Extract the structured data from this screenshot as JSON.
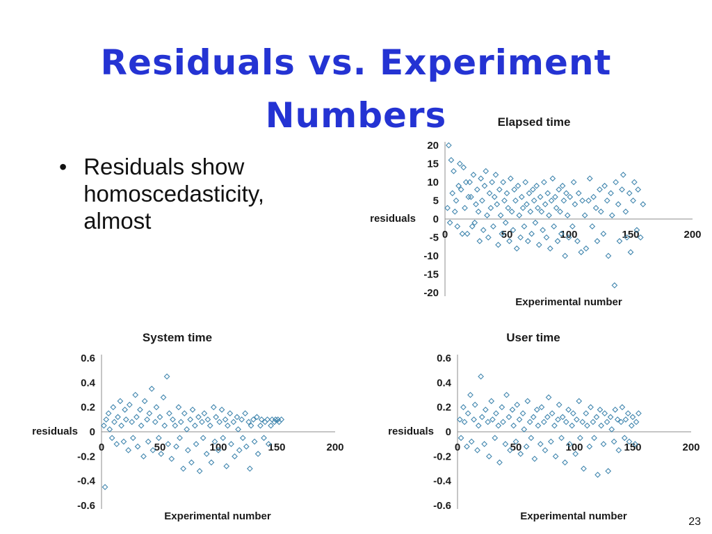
{
  "slide": {
    "title_line1": "Residuals vs. Experiment",
    "title_line2": "Numbers",
    "bullet_char": "•",
    "bullet_lines": [
      "Residuals show",
      "homoscedasticity,",
      "almost"
    ],
    "page_number": "23"
  },
  "colors": {
    "title_blue": "#2433d3",
    "marker": "#4186ae",
    "axis": "#8c8c8c"
  },
  "chart_data": [
    {
      "type": "scatter",
      "title": "Elapsed time",
      "xlabel": "Experimental number",
      "ylabel": "residuals",
      "xlim": [
        0,
        200
      ],
      "ylim": [
        -20,
        20
      ],
      "xticks": [
        0,
        50,
        100,
        150,
        200
      ],
      "yticks": [
        20,
        15,
        10,
        5,
        0,
        -5,
        -10,
        -15,
        -20
      ],
      "legend": "none",
      "grid": "zero-line-only",
      "marker": "open-diamond",
      "marker_color": "#4186ae",
      "points": [
        [
          2,
          3
        ],
        [
          3,
          20
        ],
        [
          4,
          -1
        ],
        [
          5,
          16
        ],
        [
          6,
          7
        ],
        [
          7,
          13
        ],
        [
          8,
          2
        ],
        [
          9,
          5
        ],
        [
          10,
          -2
        ],
        [
          11,
          9
        ],
        [
          12,
          15
        ],
        [
          13,
          8
        ],
        [
          14,
          -4
        ],
        [
          15,
          14
        ],
        [
          16,
          3
        ],
        [
          17,
          10
        ],
        [
          18,
          -4
        ],
        [
          19,
          6
        ],
        [
          20,
          10
        ],
        [
          21,
          6
        ],
        [
          22,
          -2
        ],
        [
          23,
          12
        ],
        [
          24,
          -1
        ],
        [
          25,
          4
        ],
        [
          26,
          8
        ],
        [
          27,
          2
        ],
        [
          28,
          -6
        ],
        [
          29,
          11
        ],
        [
          30,
          5
        ],
        [
          31,
          -3
        ],
        [
          32,
          9
        ],
        [
          33,
          13
        ],
        [
          34,
          1
        ],
        [
          35,
          -5
        ],
        [
          36,
          7
        ],
        [
          37,
          3
        ],
        [
          38,
          10
        ],
        [
          39,
          -2
        ],
        [
          40,
          6
        ],
        [
          41,
          12
        ],
        [
          42,
          4
        ],
        [
          43,
          -7
        ],
        [
          44,
          8
        ],
        [
          45,
          1
        ],
        [
          46,
          -4
        ],
        [
          47,
          10
        ],
        [
          48,
          5
        ],
        [
          49,
          -1
        ],
        [
          50,
          7
        ],
        [
          51,
          3
        ],
        [
          52,
          -6
        ],
        [
          53,
          11
        ],
        [
          54,
          2
        ],
        [
          55,
          -3
        ],
        [
          56,
          8
        ],
        [
          57,
          5
        ],
        [
          58,
          -8
        ],
        [
          59,
          9
        ],
        [
          60,
          1
        ],
        [
          61,
          -5
        ],
        [
          62,
          6
        ],
        [
          63,
          3
        ],
        [
          64,
          -2
        ],
        [
          65,
          10
        ],
        [
          66,
          4
        ],
        [
          67,
          -6
        ],
        [
          68,
          7
        ],
        [
          69,
          2
        ],
        [
          70,
          -4
        ],
        [
          71,
          8
        ],
        [
          72,
          5
        ],
        [
          73,
          -1
        ],
        [
          74,
          9
        ],
        [
          75,
          3
        ],
        [
          76,
          -7
        ],
        [
          77,
          6
        ],
        [
          78,
          2
        ],
        [
          79,
          -3
        ],
        [
          80,
          10
        ],
        [
          81,
          4
        ],
        [
          82,
          -5
        ],
        [
          83,
          7
        ],
        [
          84,
          1
        ],
        [
          85,
          -8
        ],
        [
          86,
          5
        ],
        [
          87,
          11
        ],
        [
          88,
          -2
        ],
        [
          89,
          6
        ],
        [
          90,
          3
        ],
        [
          91,
          -6
        ],
        [
          92,
          8
        ],
        [
          93,
          2
        ],
        [
          94,
          -4
        ],
        [
          95,
          9
        ],
        [
          96,
          5
        ],
        [
          97,
          -10
        ],
        [
          98,
          7
        ],
        [
          99,
          1
        ],
        [
          100,
          -5
        ],
        [
          101,
          6
        ],
        [
          103,
          -2
        ],
        [
          104,
          10
        ],
        [
          105,
          4
        ],
        [
          107,
          -6
        ],
        [
          108,
          7
        ],
        [
          110,
          -9
        ],
        [
          111,
          5
        ],
        [
          113,
          1
        ],
        [
          114,
          -8
        ],
        [
          116,
          5
        ],
        [
          117,
          11
        ],
        [
          119,
          -2
        ],
        [
          120,
          6
        ],
        [
          122,
          3
        ],
        [
          123,
          -6
        ],
        [
          125,
          8
        ],
        [
          126,
          2
        ],
        [
          128,
          -4
        ],
        [
          129,
          9
        ],
        [
          131,
          5
        ],
        [
          132,
          -10
        ],
        [
          134,
          7
        ],
        [
          135,
          1
        ],
        [
          137,
          -18
        ],
        [
          138,
          10
        ],
        [
          140,
          4
        ],
        [
          141,
          -6
        ],
        [
          143,
          8
        ],
        [
          144,
          12
        ],
        [
          146,
          2
        ],
        [
          147,
          -5
        ],
        [
          149,
          7
        ],
        [
          150,
          -9
        ],
        [
          152,
          5
        ],
        [
          153,
          10
        ],
        [
          155,
          -3
        ],
        [
          156,
          8
        ],
        [
          158,
          -5
        ],
        [
          160,
          4
        ]
      ]
    },
    {
      "type": "scatter",
      "title": "System time",
      "xlabel": "Experimental number",
      "ylabel": "residuals",
      "xlim": [
        0,
        200
      ],
      "ylim": [
        -0.6,
        0.6
      ],
      "xticks": [
        0,
        50,
        100,
        150,
        200
      ],
      "yticks": [
        0.6,
        0.4,
        0.2,
        0,
        -0.2,
        -0.4,
        -0.6
      ],
      "legend": "none",
      "grid": "zero-line-only",
      "marker": "open-diamond",
      "marker_color": "#4186ae",
      "points": [
        [
          2,
          0.05
        ],
        [
          3,
          -0.45
        ],
        [
          4,
          0.1
        ],
        [
          6,
          0.15
        ],
        [
          7,
          0.02
        ],
        [
          9,
          -0.05
        ],
        [
          10,
          0.2
        ],
        [
          11,
          0.08
        ],
        [
          13,
          -0.1
        ],
        [
          14,
          0.12
        ],
        [
          16,
          0.25
        ],
        [
          17,
          0.05
        ],
        [
          19,
          -0.08
        ],
        [
          20,
          0.18
        ],
        [
          21,
          0.1
        ],
        [
          23,
          -0.15
        ],
        [
          24,
          0.22
        ],
        [
          26,
          0.08
        ],
        [
          27,
          -0.05
        ],
        [
          29,
          0.3
        ],
        [
          30,
          0.12
        ],
        [
          31,
          -0.12
        ],
        [
          33,
          0.18
        ],
        [
          34,
          0.05
        ],
        [
          36,
          -0.2
        ],
        [
          37,
          0.25
        ],
        [
          39,
          0.1
        ],
        [
          40,
          -0.08
        ],
        [
          41,
          0.15
        ],
        [
          43,
          0.35
        ],
        [
          44,
          -0.15
        ],
        [
          46,
          0.08
        ],
        [
          47,
          0.2
        ],
        [
          49,
          -0.05
        ],
        [
          50,
          0.12
        ],
        [
          51,
          -0.18
        ],
        [
          53,
          0.28
        ],
        [
          54,
          0.05
        ],
        [
          56,
          0.45
        ],
        [
          57,
          -0.1
        ],
        [
          58,
          0.15
        ],
        [
          60,
          -0.22
        ],
        [
          61,
          0.1
        ],
        [
          63,
          0.05
        ],
        [
          64,
          -0.12
        ],
        [
          66,
          0.2
        ],
        [
          67,
          -0.05
        ],
        [
          68,
          0.08
        ],
        [
          70,
          -0.3
        ],
        [
          71,
          0.15
        ],
        [
          73,
          0.02
        ],
        [
          74,
          -0.15
        ],
        [
          76,
          0.1
        ],
        [
          77,
          -0.25
        ],
        [
          78,
          0.18
        ],
        [
          80,
          0.05
        ],
        [
          81,
          -0.1
        ],
        [
          83,
          0.12
        ],
        [
          84,
          -0.32
        ],
        [
          86,
          0.08
        ],
        [
          87,
          -0.05
        ],
        [
          88,
          0.15
        ],
        [
          90,
          -0.18
        ],
        [
          91,
          0.1
        ],
        [
          93,
          0.05
        ],
        [
          94,
          -0.25
        ],
        [
          96,
          0.2
        ],
        [
          97,
          -0.08
        ],
        [
          98,
          0.12
        ],
        [
          100,
          -0.15
        ],
        [
          101,
          0.08
        ],
        [
          103,
          0.18
        ],
        [
          104,
          -0.05
        ],
        [
          106,
          0.1
        ],
        [
          107,
          -0.28
        ],
        [
          108,
          0.05
        ],
        [
          110,
          0.15
        ],
        [
          111,
          -0.1
        ],
        [
          113,
          0.08
        ],
        [
          114,
          -0.2
        ],
        [
          116,
          0.12
        ],
        [
          117,
          0.02
        ],
        [
          118,
          -0.15
        ],
        [
          120,
          0.1
        ],
        [
          121,
          -0.05
        ],
        [
          123,
          0.15
        ],
        [
          124,
          -0.12
        ],
        [
          126,
          0.08
        ],
        [
          127,
          -0.3
        ],
        [
          128,
          0.05
        ],
        [
          130,
          0.1
        ],
        [
          131,
          -0.08
        ],
        [
          133,
          0.12
        ],
        [
          134,
          -0.18
        ],
        [
          136,
          0.05
        ],
        [
          137,
          0.1
        ],
        [
          139,
          -0.05
        ],
        [
          140,
          0.08
        ],
        [
          142,
          0.1
        ],
        [
          143,
          -0.1
        ],
        [
          145,
          0.05
        ],
        [
          146,
          0.1
        ],
        [
          148,
          0.08
        ],
        [
          149,
          0.1
        ],
        [
          151,
          0.1
        ],
        [
          152,
          0.08
        ],
        [
          154,
          0.1
        ]
      ]
    },
    {
      "type": "scatter",
      "title": "User time",
      "xlabel": "Experimental number",
      "ylabel": "residuals",
      "xlim": [
        0,
        200
      ],
      "ylim": [
        -0.6,
        0.6
      ],
      "xticks": [
        0,
        50,
        100,
        150,
        200
      ],
      "yticks": [
        0.6,
        0.4,
        0.2,
        0,
        -0.2,
        -0.4,
        -0.6
      ],
      "legend": "none",
      "grid": "zero-line-only",
      "marker": "open-diamond",
      "marker_color": "#4186ae",
      "points": [
        [
          2,
          0.1
        ],
        [
          3,
          -0.05
        ],
        [
          5,
          0.2
        ],
        [
          6,
          0.08
        ],
        [
          8,
          -0.12
        ],
        [
          9,
          0.15
        ],
        [
          11,
          0.3
        ],
        [
          12,
          -0.08
        ],
        [
          14,
          0.1
        ],
        [
          15,
          0.22
        ],
        [
          17,
          -0.15
        ],
        [
          18,
          0.05
        ],
        [
          20,
          0.45
        ],
        [
          21,
          0.12
        ],
        [
          23,
          -0.1
        ],
        [
          24,
          0.18
        ],
        [
          26,
          0.08
        ],
        [
          27,
          -0.2
        ],
        [
          29,
          0.25
        ],
        [
          30,
          0.1
        ],
        [
          32,
          -0.05
        ],
        [
          33,
          0.15
        ],
        [
          35,
          0.05
        ],
        [
          36,
          -0.25
        ],
        [
          38,
          0.2
        ],
        [
          39,
          0.08
        ],
        [
          41,
          -0.1
        ],
        [
          42,
          0.3
        ],
        [
          44,
          0.12
        ],
        [
          45,
          -0.15
        ],
        [
          47,
          0.18
        ],
        [
          48,
          0.05
        ],
        [
          50,
          -0.08
        ],
        [
          51,
          0.22
        ],
        [
          53,
          0.1
        ],
        [
          54,
          -0.18
        ],
        [
          56,
          0.15
        ],
        [
          57,
          0.02
        ],
        [
          59,
          -0.12
        ],
        [
          60,
          0.25
        ],
        [
          62,
          0.08
        ],
        [
          63,
          -0.05
        ],
        [
          65,
          0.12
        ],
        [
          66,
          -0.22
        ],
        [
          68,
          0.18
        ],
        [
          69,
          0.05
        ],
        [
          71,
          -0.1
        ],
        [
          72,
          0.2
        ],
        [
          74,
          0.08
        ],
        [
          75,
          -0.15
        ],
        [
          77,
          0.12
        ],
        [
          78,
          0.28
        ],
        [
          80,
          -0.08
        ],
        [
          81,
          0.15
        ],
        [
          83,
          0.05
        ],
        [
          84,
          -0.2
        ],
        [
          86,
          0.1
        ],
        [
          87,
          0.22
        ],
        [
          89,
          -0.05
        ],
        [
          90,
          0.12
        ],
        [
          92,
          -0.25
        ],
        [
          93,
          0.08
        ],
        [
          95,
          0.18
        ],
        [
          96,
          -0.1
        ],
        [
          98,
          0.05
        ],
        [
          99,
          0.15
        ],
        [
          101,
          -0.18
        ],
        [
          102,
          0.1
        ],
        [
          104,
          0.25
        ],
        [
          105,
          -0.05
        ],
        [
          107,
          0.08
        ],
        [
          108,
          -0.3
        ],
        [
          110,
          0.15
        ],
        [
          111,
          0.05
        ],
        [
          113,
          -0.12
        ],
        [
          114,
          0.2
        ],
        [
          116,
          0.08
        ],
        [
          117,
          -0.05
        ],
        [
          119,
          0.12
        ],
        [
          120,
          -0.35
        ],
        [
          122,
          0.18
        ],
        [
          123,
          0.05
        ],
        [
          125,
          -0.1
        ],
        [
          126,
          0.15
        ],
        [
          128,
          0.08
        ],
        [
          129,
          -0.32
        ],
        [
          131,
          0.12
        ],
        [
          132,
          0.02
        ],
        [
          134,
          -0.08
        ],
        [
          135,
          0.18
        ],
        [
          137,
          0.1
        ],
        [
          138,
          -0.15
        ],
        [
          140,
          0.08
        ],
        [
          141,
          0.2
        ],
        [
          143,
          -0.05
        ],
        [
          144,
          0.1
        ],
        [
          146,
          0.15
        ],
        [
          147,
          -0.08
        ],
        [
          149,
          0.05
        ],
        [
          150,
          0.12
        ],
        [
          152,
          -0.1
        ],
        [
          153,
          0.08
        ],
        [
          155,
          0.15
        ]
      ]
    }
  ]
}
